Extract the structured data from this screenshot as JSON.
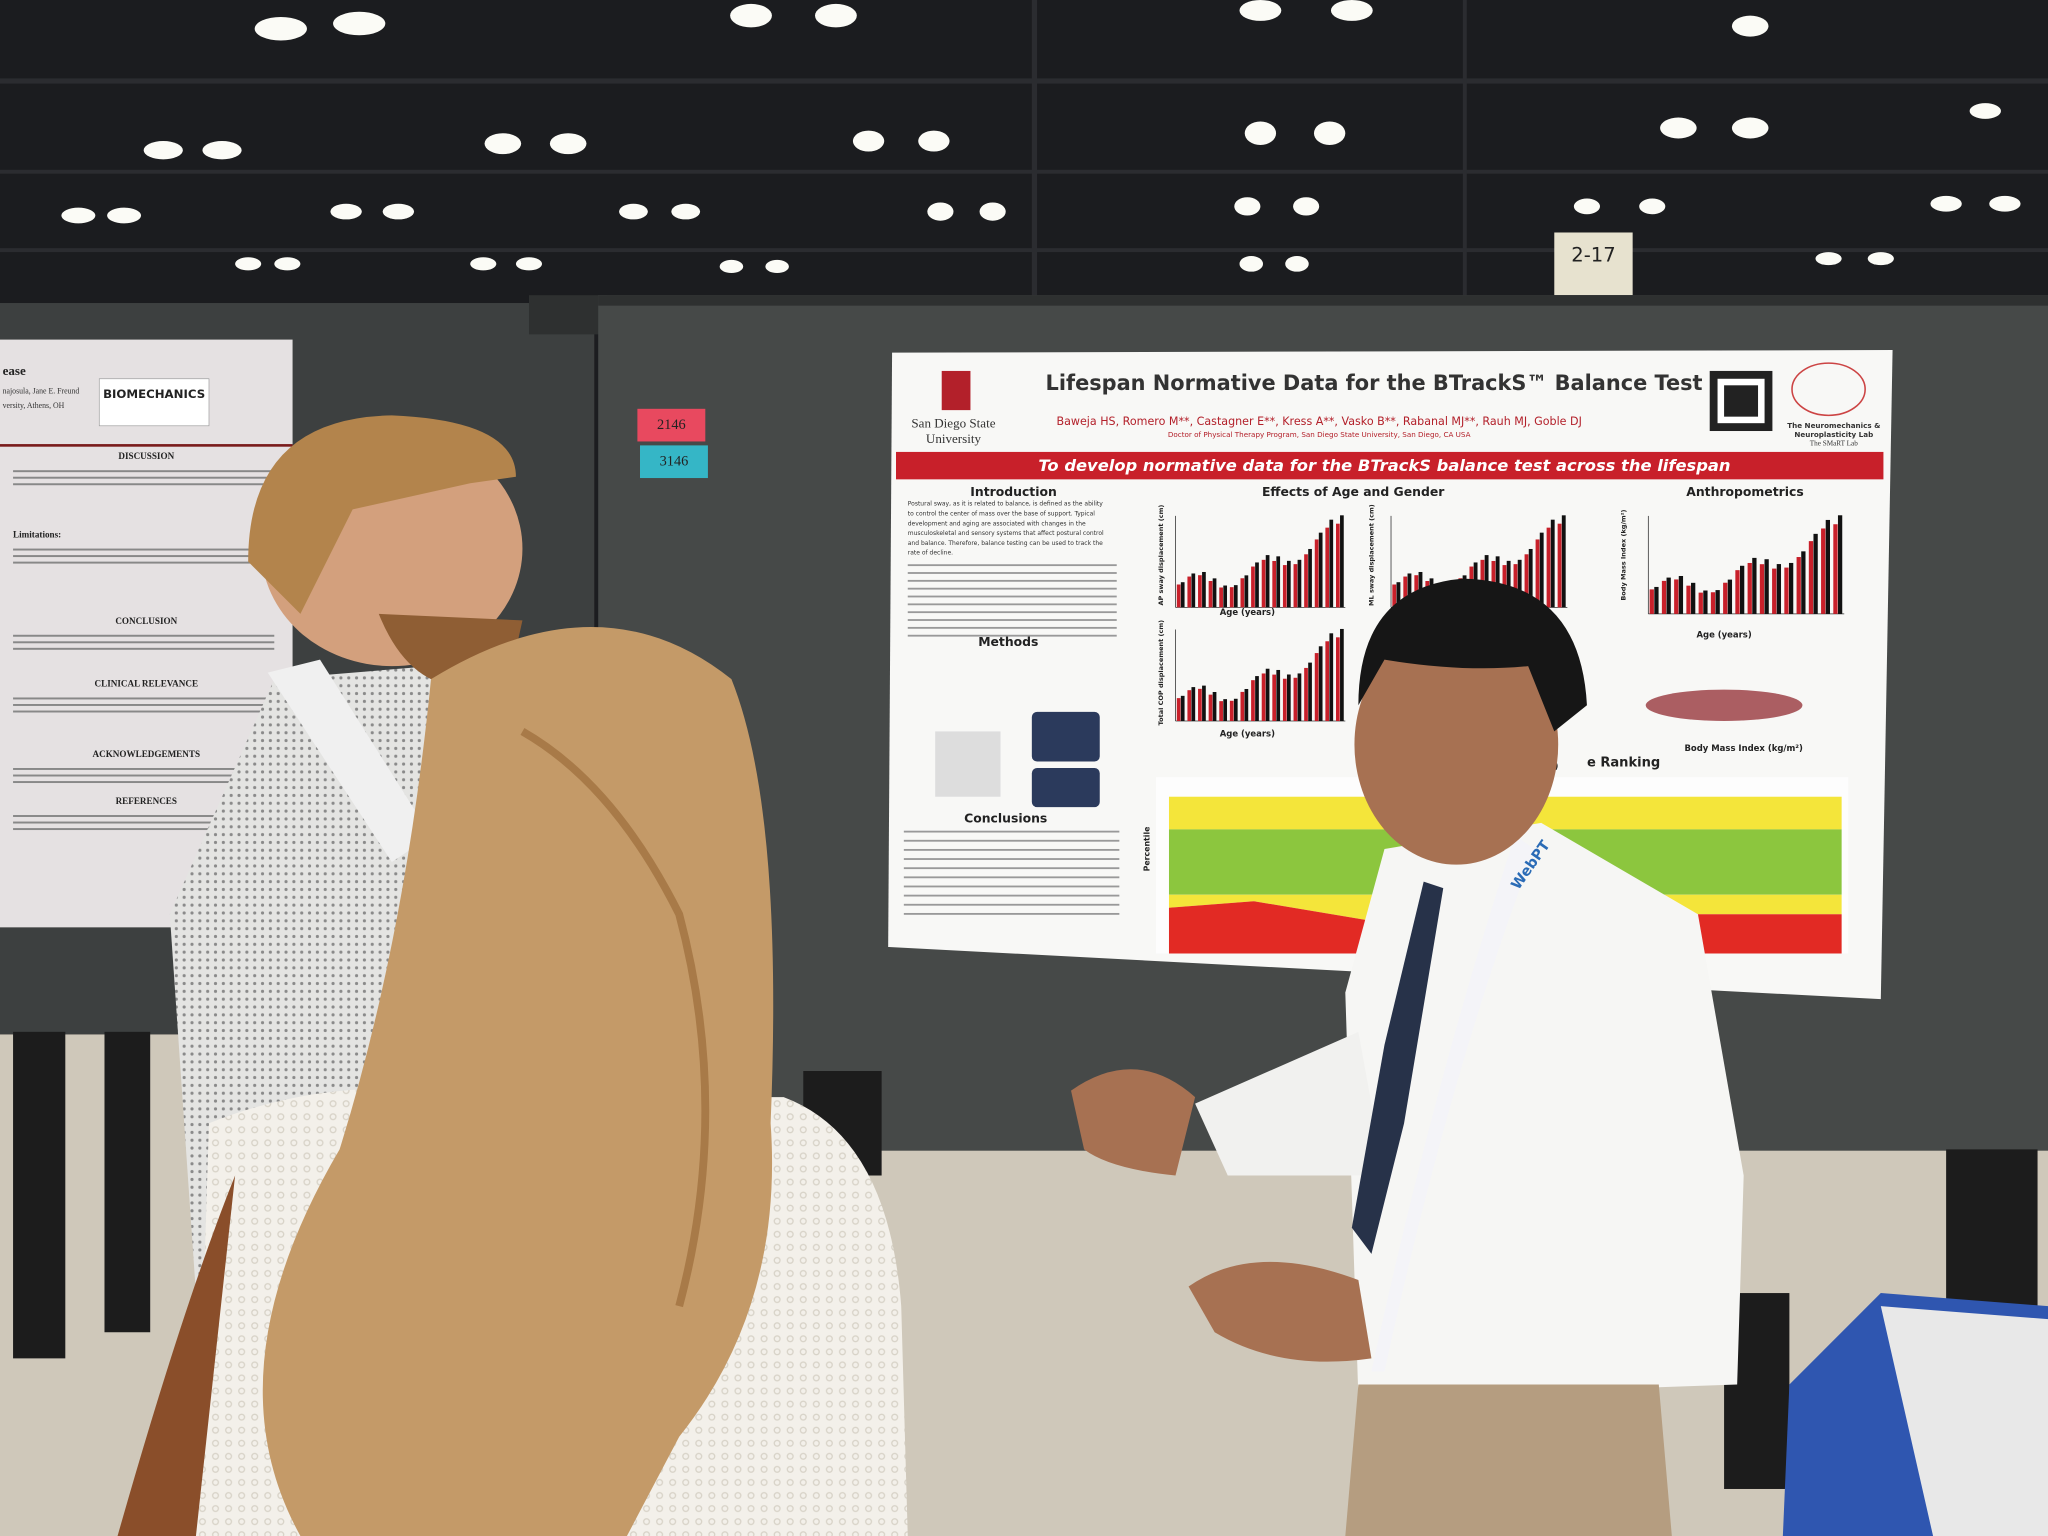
{
  "scene": {
    "booth_sign": "2-17",
    "board_labels": [
      "2146",
      "3146"
    ],
    "left_poster": {
      "title_fragment": "ease",
      "authors_fragment": "najosula, Jane E. Freund",
      "affiliation_fragment": "versity, Athens, OH",
      "lab_logo": "BIOMECHANICS",
      "headings": [
        "DISCUSSION",
        "Limitations:",
        "CONCLUSION",
        "CLINICAL RELEVANCE",
        "ACKNOWLEDGEMENTS",
        "REFERENCES"
      ]
    },
    "poster": {
      "title": "Lifespan Normative Data for the BTrackS™ Balance Test",
      "authors": "Baweja HS, Romero M**, Castagner E**, Kress A**, Vasko B**, Rabanal MJ**, Rauh MJ, Goble DJ",
      "affiliation": "Doctor of Physical Therapy Program, San Diego State University, San Diego, CA USA",
      "university": [
        "San Diego State",
        "University"
      ],
      "lab": [
        "The Neuromechanics &",
        "Neuroplasticity Lab",
        "The SMaRT Lab"
      ],
      "banner": "To develop normative data for the BTrackS balance test across the lifespan",
      "sections": [
        "Introduction",
        "Effects of Age and Gender",
        "Anthropometrics",
        "Methods",
        "Conclusions",
        "Age (years)"
      ],
      "intro": [
        "Postural sway, as it is related to balance, is defined as the ability",
        "to control the center of mass over the base of support. Typical",
        "development and aging are associated with changes in the",
        "musculoskeletal and sensory systems that affect postural control",
        "and balance. Therefore, balance testing can be used to track the",
        "rate of decline."
      ],
      "axis_labels": [
        "AP sway displacement (cm)",
        "ML sway displacement (cm)",
        "Total COP displacement (cm)",
        "Body Mass Index (kg/m²)",
        "Body Mass Index (kg/m²)",
        "Percentile"
      ],
      "table_heading": "e Ranking"
    },
    "lanyard": "WebPT"
  }
}
